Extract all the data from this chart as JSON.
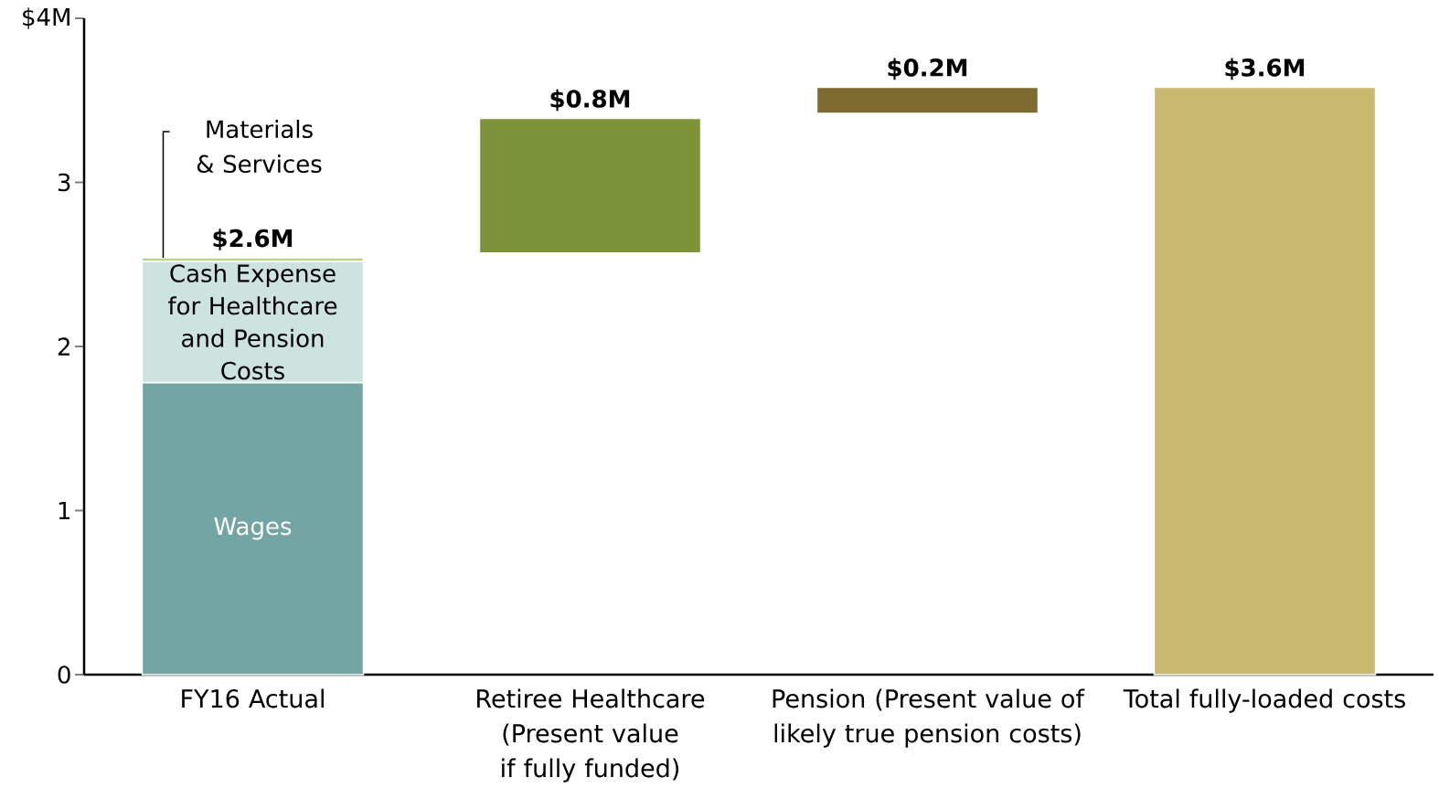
{
  "chart_data": {
    "type": "bar",
    "stacked": true,
    "categories": [
      "FY16 Actual",
      "Retiree Healthcare (Present value if fully funded)",
      "Pension (Present value of likely true pension costs)",
      "Total fully-loaded costs"
    ],
    "series": [
      {
        "name": "Wages",
        "color": "#73a5a4",
        "values": [
          1.78,
          null,
          null,
          null
        ]
      },
      {
        "name": "Cash Expense for Healthcare and Pension Costs",
        "color": "#cde3df",
        "values": [
          0.74,
          null,
          null,
          null
        ]
      },
      {
        "name": "Materials & Services",
        "color": "#b5d48a",
        "values": [
          0.02,
          null,
          null,
          null
        ]
      },
      {
        "color": "#7d9339",
        "values": [
          null,
          0.82,
          null,
          null
        ],
        "base": [
          null,
          2.57,
          null,
          null
        ]
      },
      {
        "color": "#7e6b30",
        "values": [
          null,
          null,
          0.16,
          null
        ],
        "base": [
          null,
          null,
          3.42,
          null
        ]
      },
      {
        "color": "#c9b870",
        "values": [
          null,
          null,
          null,
          3.58
        ]
      }
    ],
    "totals": [
      "$2.6M",
      "$0.8M",
      "$0.2M",
      "$3.6M"
    ],
    "ylim": [
      0,
      4
    ],
    "yticks": [
      0,
      1,
      2,
      3,
      {
        "value": 4,
        "label": "$4M"
      }
    ]
  }
}
